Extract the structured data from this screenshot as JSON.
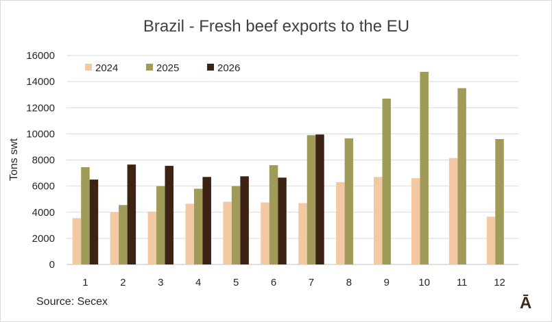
{
  "chart_data": {
    "type": "bar",
    "title": "Brazil - Fresh beef exports to the EU",
    "ylabel": "Tons swt",
    "xlabel": "",
    "categories": [
      "1",
      "2",
      "3",
      "4",
      "5",
      "6",
      "7",
      "8",
      "9",
      "10",
      "11",
      "12"
    ],
    "ylim": [
      0,
      16000
    ],
    "yticks": [
      "0",
      "2000",
      "4000",
      "6000",
      "8000",
      "10000",
      "12000",
      "14000",
      "16000"
    ],
    "grid": true,
    "legend_position": "top-left",
    "series": [
      {
        "name": "2024",
        "color": "#f2c9a3",
        "values": [
          3550,
          4000,
          4050,
          4650,
          4800,
          4750,
          4700,
          6300,
          6700,
          6600,
          8150,
          3650
        ]
      },
      {
        "name": "2025",
        "color": "#a09b58",
        "values": [
          7450,
          4550,
          6000,
          5800,
          6000,
          7600,
          9900,
          9650,
          12700,
          14750,
          13500,
          9600
        ]
      },
      {
        "name": "2026",
        "color": "#3d2314",
        "values": [
          6500,
          7650,
          7550,
          6700,
          6750,
          6650,
          9950,
          null,
          null,
          null,
          null,
          null
        ]
      }
    ]
  },
  "source": "Source: Secex",
  "logo_text": "Ā"
}
